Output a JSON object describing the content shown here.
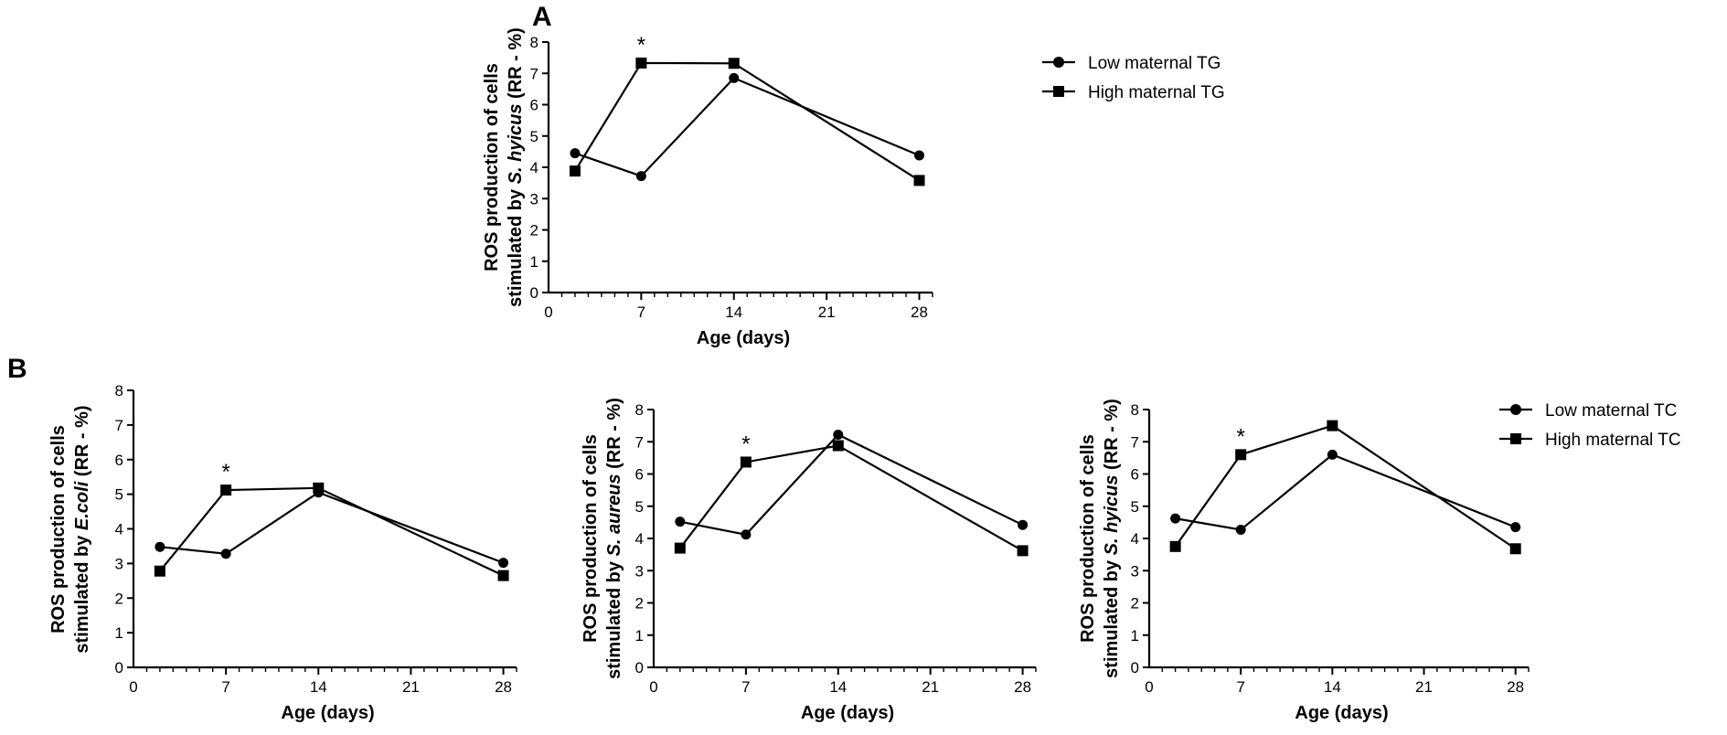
{
  "figure": {
    "panel_labels": [
      "A",
      "B"
    ]
  },
  "legends": {
    "tg": {
      "low": "Low maternal TG",
      "high": "High maternal TG"
    },
    "tc": {
      "low": "Low maternal TC",
      "high": "High maternal TC"
    }
  },
  "chart_data": [
    {
      "id": "A",
      "type": "line",
      "panel": "A",
      "ylabel_line1": "ROS production of cells",
      "ylabel_line2_pre": "stimulated by ",
      "ylabel_line2_italic": "S. hyicus",
      "ylabel_line2_post": " (RR - %)",
      "xlabel": "Age (days)",
      "x": [
        2,
        7,
        14,
        28
      ],
      "xticks": [
        "0",
        "7",
        "14",
        "21",
        "28"
      ],
      "yticks": [
        "0",
        "1",
        "2",
        "3",
        "4",
        "5",
        "6",
        "7",
        "8"
      ],
      "xlim": [
        0,
        29
      ],
      "ylim": [
        0,
        8
      ],
      "series": [
        {
          "name": "Low maternal TG",
          "marker": "circle",
          "values": [
            4.45,
            3.72,
            6.85,
            4.38
          ]
        },
        {
          "name": "High maternal TG",
          "marker": "square",
          "values": [
            3.88,
            7.33,
            7.32,
            3.58
          ]
        }
      ],
      "annotations": [
        {
          "text": "*",
          "x": 7
        }
      ]
    },
    {
      "id": "B1",
      "type": "line",
      "panel": "B",
      "ylabel_line1": "ROS production of cells",
      "ylabel_line2_pre": "stimulated by ",
      "ylabel_line2_italic": "E.coli",
      "ylabel_line2_post": " (RR - %)",
      "xlabel": "Age (days)",
      "x": [
        2,
        7,
        14,
        28
      ],
      "xticks": [
        "0",
        "7",
        "14",
        "21",
        "28"
      ],
      "yticks": [
        "0",
        "1",
        "2",
        "3",
        "4",
        "5",
        "6",
        "7",
        "8"
      ],
      "xlim": [
        0,
        29
      ],
      "ylim": [
        0,
        8
      ],
      "series": [
        {
          "name": "Low maternal TC",
          "marker": "circle",
          "values": [
            3.48,
            3.28,
            5.05,
            3.02
          ]
        },
        {
          "name": "High maternal TC",
          "marker": "square",
          "values": [
            2.78,
            5.12,
            5.18,
            2.65
          ]
        }
      ],
      "annotations": [
        {
          "text": "*",
          "x": 7
        }
      ]
    },
    {
      "id": "B2",
      "type": "line",
      "panel": "B",
      "ylabel_line1": "ROS production of cells",
      "ylabel_line2_pre": "stimulated by ",
      "ylabel_line2_italic": "S. aureus",
      "ylabel_line2_post": " (RR - %)",
      "xlabel": "Age (days)",
      "x": [
        2,
        7,
        14,
        28
      ],
      "xticks": [
        "0",
        "7",
        "14",
        "21",
        "28"
      ],
      "yticks": [
        "0",
        "1",
        "2",
        "3",
        "4",
        "5",
        "6",
        "7",
        "8"
      ],
      "xlim": [
        0,
        29
      ],
      "ylim": [
        0,
        8
      ],
      "series": [
        {
          "name": "Low maternal TC",
          "marker": "circle",
          "values": [
            4.52,
            4.12,
            7.22,
            4.42
          ]
        },
        {
          "name": "High maternal TC",
          "marker": "square",
          "values": [
            3.7,
            6.37,
            6.88,
            3.62
          ]
        }
      ],
      "annotations": [
        {
          "text": "*",
          "x": 7
        }
      ]
    },
    {
      "id": "B3",
      "type": "line",
      "panel": "B",
      "ylabel_line1": "ROS production of cells",
      "ylabel_line2_pre": "stimulated by ",
      "ylabel_line2_italic": "S. hyicus",
      "ylabel_line2_post": " (RR - %)",
      "xlabel": "Age (days)",
      "x": [
        2,
        7,
        14,
        28
      ],
      "xticks": [
        "0",
        "7",
        "14",
        "21",
        "28"
      ],
      "yticks": [
        "0",
        "1",
        "2",
        "3",
        "4",
        "5",
        "6",
        "7",
        "8"
      ],
      "xlim": [
        0,
        29
      ],
      "ylim": [
        0,
        8
      ],
      "series": [
        {
          "name": "Low maternal TC",
          "marker": "circle",
          "values": [
            4.62,
            4.27,
            6.6,
            4.35
          ]
        },
        {
          "name": "High maternal TC",
          "marker": "square",
          "values": [
            3.75,
            6.6,
            7.5,
            3.68
          ]
        }
      ],
      "annotations": [
        {
          "text": "*",
          "x": 7
        }
      ]
    }
  ]
}
